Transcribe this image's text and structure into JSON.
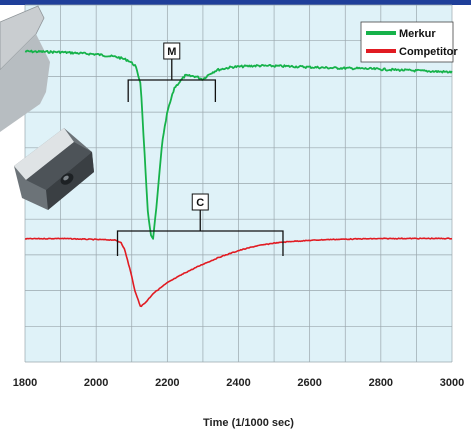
{
  "colors": {
    "header_bar": "#1f3f9a",
    "plot_bg": "#dff2f8",
    "grid": "#9aa7ad",
    "merkur": "#16b24a",
    "competitor": "#e11b22"
  },
  "decorative_image": "metal-bracket-photo",
  "chart_data": {
    "type": "line",
    "title": "",
    "xlabel": "Time (1/1000 sec)",
    "ylabel": "",
    "xlim": [
      1800,
      3000
    ],
    "x_ticks": [
      1800,
      2000,
      2200,
      2400,
      2600,
      2800,
      3000
    ],
    "x_tick_labels": [
      "1800",
      "2000",
      "2200",
      "2400",
      "2600",
      "2800",
      "3000"
    ],
    "ylim": [
      0,
      1
    ],
    "y_ticks_shown": false,
    "grid": true,
    "legend_position": "top-right",
    "series": [
      {
        "name": "Merkur",
        "color": "#16b24a",
        "x": [
          1800,
          1900,
          2000,
          2060,
          2090,
          2110,
          2125,
          2135,
          2145,
          2155,
          2160,
          2170,
          2185,
          2200,
          2220,
          2250,
          2280,
          2300,
          2320,
          2340,
          2380,
          2450,
          2550,
          2650,
          2750,
          2850,
          2950,
          3000
        ],
        "y": [
          0.87,
          0.868,
          0.862,
          0.854,
          0.845,
          0.83,
          0.78,
          0.6,
          0.42,
          0.35,
          0.345,
          0.44,
          0.61,
          0.7,
          0.768,
          0.802,
          0.8,
          0.792,
          0.808,
          0.818,
          0.826,
          0.83,
          0.828,
          0.824,
          0.822,
          0.818,
          0.814,
          0.812
        ]
      },
      {
        "name": "Competitor",
        "color": "#e11b22",
        "x": [
          1800,
          1900,
          2000,
          2050,
          2070,
          2080,
          2095,
          2110,
          2125,
          2140,
          2160,
          2200,
          2250,
          2300,
          2350,
          2400,
          2450,
          2500,
          2550,
          2650,
          2750,
          2850,
          2950,
          3000
        ],
        "y": [
          0.345,
          0.346,
          0.343,
          0.342,
          0.335,
          0.315,
          0.26,
          0.195,
          0.155,
          0.168,
          0.192,
          0.222,
          0.25,
          0.274,
          0.295,
          0.312,
          0.325,
          0.333,
          0.338,
          0.343,
          0.345,
          0.346,
          0.346,
          0.346
        ]
      }
    ],
    "annotations": [
      {
        "label": "M",
        "series": "Merkur",
        "x_start": 2090,
        "x_end": 2335
      },
      {
        "label": "C",
        "series": "Competitor",
        "x_start": 2060,
        "x_end": 2525
      }
    ]
  }
}
